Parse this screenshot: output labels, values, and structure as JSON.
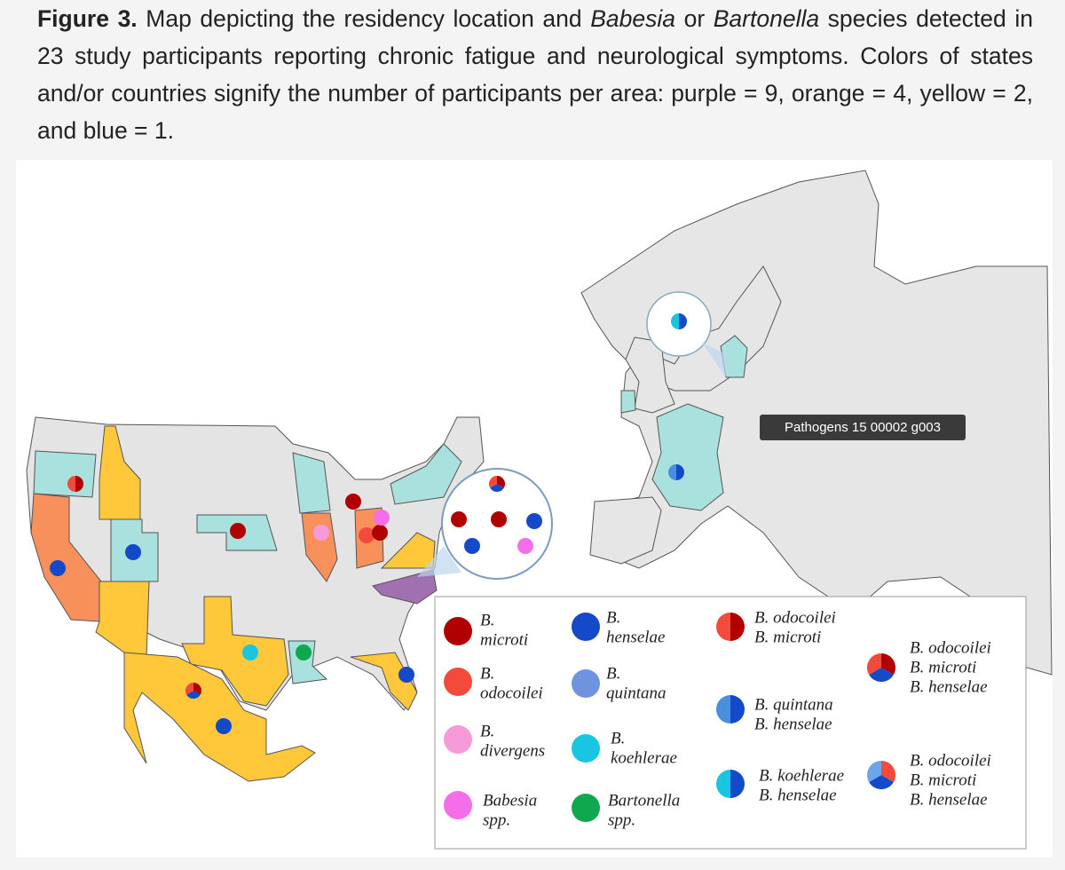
{
  "caption": {
    "label": "Figure 3.",
    "parts": [
      " Map depicting the residency location and ",
      "Babesia",
      " or ",
      "Bartonella",
      " species detected in 23 study participants reporting chronic fatigue and neurological symptoms. Colors of states and/or countries signify the number of participants per area: purple = 9, orange = 4, yellow = 2, and blue = 1."
    ]
  },
  "tooltip": "Pathogens 15 00002 g003",
  "legend": [
    {
      "lines": [
        "B.",
        "microti"
      ],
      "colors": [
        "#b00000"
      ]
    },
    {
      "lines": [
        "B.",
        "odocoilei"
      ],
      "colors": [
        "#f24b3b"
      ]
    },
    {
      "lines": [
        "B.",
        "divergens"
      ],
      "colors": [
        "#f79ad9"
      ]
    },
    {
      "lines": [
        "Babesia",
        "spp."
      ],
      "colors": [
        "#f56ee9"
      ]
    },
    {
      "lines": [
        "B.",
        "henselae"
      ],
      "colors": [
        "#1449c9"
      ]
    },
    {
      "lines": [
        "B.",
        "quintana"
      ],
      "colors": [
        "#7093e0"
      ]
    },
    {
      "lines": [
        "B.",
        "koehlerae"
      ],
      "colors": [
        "#18c6e2"
      ]
    },
    {
      "lines": [
        "Bartonella",
        "spp."
      ],
      "colors": [
        "#10a84e"
      ]
    },
    {
      "lines": [
        "B. odocoilei",
        "B. microti"
      ],
      "colors": [
        "#b00000",
        "#f24b3b"
      ]
    },
    {
      "lines": [
        "B. quintana",
        "B. henselae"
      ],
      "colors": [
        "#1449c9",
        "#4a8ee0"
      ]
    },
    {
      "lines": [
        "B. koehlerae",
        "B. henselae"
      ],
      "colors": [
        "#1449c9",
        "#18c6e2"
      ]
    },
    {
      "lines": [
        "B. odocoilei",
        "B. microti",
        "B. henselae"
      ],
      "colors": [
        "#b00000",
        "#1449c9",
        "#f24b3b"
      ]
    },
    {
      "lines": [
        "B. odocoilei",
        "B. microti",
        "B. henselae"
      ],
      "colors": [
        "#f24b3b",
        "#1449c9",
        "#6aa6e8"
      ]
    }
  ]
}
